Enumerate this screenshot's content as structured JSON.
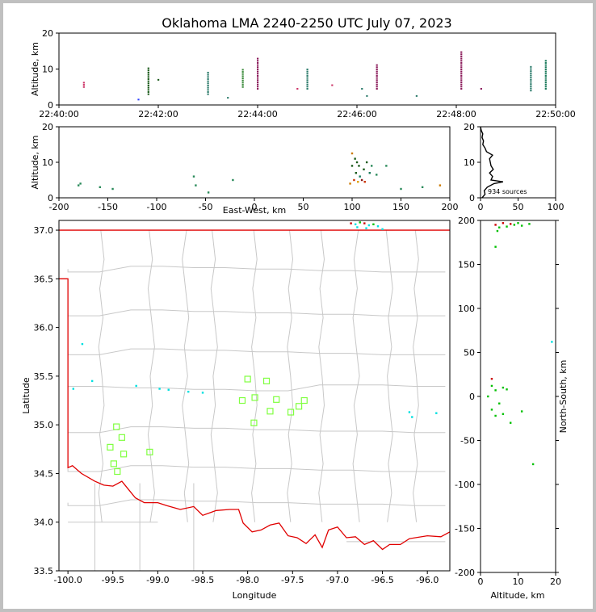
{
  "chart_data": {
    "type": "scatter",
    "title": "Oklahoma LMA 2240-2250 UTC July 07, 2023",
    "colors": {
      "state_border": "#e00000",
      "county_lines": "#c8c8c8",
      "stations": "#80ff40",
      "frame": "#c0c0c0",
      "histogram": "#000000"
    },
    "panels": {
      "time_height": {
        "ylabel": "Altitude, km",
        "xlim": [
          "22:40:00",
          "22:50:00"
        ],
        "ylim": [
          0,
          20
        ],
        "xticks": [
          "22:40:00",
          "22:42:00",
          "22:44:00",
          "22:46:00",
          "22:48:00",
          "22:50:00"
        ],
        "yticks": [
          0,
          10,
          20
        ],
        "source_columns": [
          {
            "t": 0.5,
            "zmin": 5,
            "zmax": 6.5,
            "color": "#cc3366"
          },
          {
            "t": 1.6,
            "zmin": 1.5,
            "zmax": 2,
            "color": "#2a3cff"
          },
          {
            "t": 1.8,
            "zmin": 3,
            "zmax": 10.5,
            "color": "#1a5a1a"
          },
          {
            "t": 2.0,
            "zmin": 7,
            "zmax": 7.5,
            "color": "#1a5a1a"
          },
          {
            "t": 3.0,
            "zmin": 3,
            "zmax": 9,
            "color": "#2a7a6a"
          },
          {
            "t": 3.4,
            "zmin": 2,
            "zmax": 2.5,
            "color": "#2a7a6a"
          },
          {
            "t": 3.7,
            "zmin": 5,
            "zmax": 10,
            "color": "#3a8a3a"
          },
          {
            "t": 4.0,
            "zmin": 4.5,
            "zmax": 13,
            "color": "#8a1a5a"
          },
          {
            "t": 4.8,
            "zmin": 4.5,
            "zmax": 5,
            "color": "#cc3366"
          },
          {
            "t": 5.0,
            "zmin": 4.5,
            "zmax": 10,
            "color": "#2a7a6a"
          },
          {
            "t": 5.5,
            "zmin": 5.5,
            "zmax": 6,
            "color": "#cc3366"
          },
          {
            "t": 6.1,
            "zmin": 4.5,
            "zmax": 5,
            "color": "#2a7a6a"
          },
          {
            "t": 6.2,
            "zmin": 2.5,
            "zmax": 3,
            "color": "#2a7a6a"
          },
          {
            "t": 6.4,
            "zmin": 4.5,
            "zmax": 11.5,
            "color": "#8a1a5a"
          },
          {
            "t": 7.2,
            "zmin": 2.5,
            "zmax": 3,
            "color": "#2a7a6a"
          },
          {
            "t": 8.1,
            "zmin": 4.5,
            "zmax": 15,
            "color": "#8a1a5a"
          },
          {
            "t": 8.5,
            "zmin": 4.5,
            "zmax": 5,
            "color": "#8a1a5a"
          },
          {
            "t": 9.5,
            "zmin": 4,
            "zmax": 11,
            "color": "#2a7a6a"
          },
          {
            "t": 9.8,
            "zmin": 4.5,
            "zmax": 12.5,
            "color": "#1a7a5a"
          }
        ]
      },
      "ew_height": {
        "ylabel": "Altitude, km",
        "xlabel": "East-West, km",
        "xlim": [
          -200,
          200
        ],
        "ylim": [
          0,
          20
        ],
        "xticks": [
          -200,
          -150,
          -100,
          -50,
          0,
          50,
          100,
          150,
          200
        ],
        "yticks": [
          0,
          10,
          20
        ],
        "points": [
          {
            "x": -180,
            "z": 3.5,
            "color": "#2a8a5a"
          },
          {
            "x": -178,
            "z": 4,
            "color": "#2a8a5a"
          },
          {
            "x": -158,
            "z": 3,
            "color": "#2a8a5a"
          },
          {
            "x": -145,
            "z": 2.5,
            "color": "#2a8a5a"
          },
          {
            "x": -62,
            "z": 6,
            "color": "#2a8a5a"
          },
          {
            "x": -60,
            "z": 3.5,
            "color": "#2a8a5a"
          },
          {
            "x": -47,
            "z": 1.5,
            "color": "#2a8a5a"
          },
          {
            "x": -22,
            "z": 5,
            "color": "#2a8a5a"
          },
          {
            "x": 100,
            "z": 12.5,
            "color": "#cc7a00"
          },
          {
            "x": 103,
            "z": 11,
            "color": "#1a5a1a"
          },
          {
            "x": 105,
            "z": 10,
            "color": "#1a5a1a"
          },
          {
            "x": 107,
            "z": 9,
            "color": "#1a5a1a"
          },
          {
            "x": 104,
            "z": 7,
            "color": "#1a5a1a"
          },
          {
            "x": 108,
            "z": 6,
            "color": "#1a7a5a"
          },
          {
            "x": 102,
            "z": 5,
            "color": "#cc3300"
          },
          {
            "x": 106,
            "z": 4.5,
            "color": "#e0a000"
          },
          {
            "x": 110,
            "z": 5,
            "color": "#8a1a1a"
          },
          {
            "x": 112,
            "z": 8,
            "color": "#1a5a1a"
          },
          {
            "x": 115,
            "z": 10,
            "color": "#1a5a1a"
          },
          {
            "x": 118,
            "z": 7,
            "color": "#1a7a5a"
          },
          {
            "x": 120,
            "z": 9,
            "color": "#2a8a5a"
          },
          {
            "x": 125,
            "z": 6.5,
            "color": "#2a8a5a"
          },
          {
            "x": 98,
            "z": 4,
            "color": "#cc7a00"
          },
          {
            "x": 100,
            "z": 9,
            "color": "#1a5a1a"
          },
          {
            "x": 113,
            "z": 4.5,
            "color": "#cc3300"
          },
          {
            "x": 135,
            "z": 9,
            "color": "#2a8a5a"
          },
          {
            "x": 150,
            "z": 2.5,
            "color": "#2a8a5a"
          },
          {
            "x": 172,
            "z": 3,
            "color": "#2a8a5a"
          },
          {
            "x": 190,
            "z": 3.5,
            "color": "#cc7a00"
          }
        ]
      },
      "histogram": {
        "xlim": [
          0,
          100
        ],
        "ylim": [
          0,
          20
        ],
        "xticks": [
          0,
          50,
          100
        ],
        "yticks": [
          0,
          10,
          20
        ],
        "annotation": "934 sources",
        "profile": [
          {
            "z": 0,
            "n": 2
          },
          {
            "z": 1,
            "n": 6
          },
          {
            "z": 2,
            "n": 5
          },
          {
            "z": 3,
            "n": 9
          },
          {
            "z": 4,
            "n": 18
          },
          {
            "z": 4.5,
            "n": 30
          },
          {
            "z": 5,
            "n": 14
          },
          {
            "z": 6,
            "n": 16
          },
          {
            "z": 7,
            "n": 12
          },
          {
            "z": 8,
            "n": 17
          },
          {
            "z": 9,
            "n": 14
          },
          {
            "z": 10,
            "n": 13
          },
          {
            "z": 11,
            "n": 12
          },
          {
            "z": 12,
            "n": 16
          },
          {
            "z": 13,
            "n": 8
          },
          {
            "z": 14,
            "n": 6
          },
          {
            "z": 15,
            "n": 3
          },
          {
            "z": 16,
            "n": 4
          },
          {
            "z": 17,
            "n": 2
          },
          {
            "z": 18,
            "n": 3
          },
          {
            "z": 19,
            "n": 1
          },
          {
            "z": 20,
            "n": 0
          }
        ]
      },
      "map": {
        "xlabel": "Longitude",
        "ylabel": "Latitude",
        "xlim": [
          -100.1,
          -95.75
        ],
        "ylim": [
          33.5,
          37.1
        ],
        "xticks": [
          -100.0,
          -99.5,
          -99.0,
          -98.5,
          -98.0,
          -97.5,
          -97.0,
          -96.5,
          -96.0
        ],
        "yticks": [
          33.5,
          34.0,
          34.5,
          35.0,
          35.5,
          36.0,
          36.5,
          37.0
        ],
        "stations": [
          {
            "lon": -98.0,
            "lat": 35.47
          },
          {
            "lon": -97.79,
            "lat": 35.45
          },
          {
            "lon": -98.06,
            "lat": 35.25
          },
          {
            "lon": -97.92,
            "lat": 35.28
          },
          {
            "lon": -97.68,
            "lat": 35.26
          },
          {
            "lon": -97.37,
            "lat": 35.25
          },
          {
            "lon": -97.43,
            "lat": 35.19
          },
          {
            "lon": -97.75,
            "lat": 35.14
          },
          {
            "lon": -97.52,
            "lat": 35.13
          },
          {
            "lon": -97.93,
            "lat": 35.02
          },
          {
            "lon": -99.46,
            "lat": 34.98
          },
          {
            "lon": -99.4,
            "lat": 34.87
          },
          {
            "lon": -99.53,
            "lat": 34.77
          },
          {
            "lon": -99.38,
            "lat": 34.7
          },
          {
            "lon": -99.09,
            "lat": 34.72
          },
          {
            "lon": -99.49,
            "lat": 34.6
          },
          {
            "lon": -99.45,
            "lat": 34.52
          }
        ],
        "sources": [
          {
            "lon": -99.84,
            "lat": 35.83,
            "color": "#00e0e0"
          },
          {
            "lon": -99.73,
            "lat": 35.45,
            "color": "#00e0e0"
          },
          {
            "lon": -99.94,
            "lat": 35.37,
            "color": "#00e0e0"
          },
          {
            "lon": -99.24,
            "lat": 35.4,
            "color": "#00e0e0"
          },
          {
            "lon": -98.98,
            "lat": 35.37,
            "color": "#00e0e0"
          },
          {
            "lon": -98.88,
            "lat": 35.36,
            "color": "#00e0e0"
          },
          {
            "lon": -98.66,
            "lat": 35.34,
            "color": "#00e0e0"
          },
          {
            "lon": -98.5,
            "lat": 35.33,
            "color": "#00e0e0"
          },
          {
            "lon": -96.2,
            "lat": 35.13,
            "color": "#00e0e0"
          },
          {
            "lon": -96.17,
            "lat": 35.08,
            "color": "#00e0e0"
          },
          {
            "lon": -95.9,
            "lat": 35.12,
            "color": "#00e0e0"
          },
          {
            "lon": -96.85,
            "lat": 37.07,
            "color": "#cc0000"
          },
          {
            "lon": -96.8,
            "lat": 37.06,
            "color": "#00e0e0"
          },
          {
            "lon": -96.75,
            "lat": 37.08,
            "color": "#00c000"
          },
          {
            "lon": -96.7,
            "lat": 37.07,
            "color": "#cc0000"
          },
          {
            "lon": -96.65,
            "lat": 37.05,
            "color": "#00e0e0"
          },
          {
            "lon": -96.6,
            "lat": 37.06,
            "color": "#00c000"
          },
          {
            "lon": -96.55,
            "lat": 37.04,
            "color": "#00e0e0"
          },
          {
            "lon": -96.78,
            "lat": 37.03,
            "color": "#00e0e0"
          },
          {
            "lon": -96.68,
            "lat": 37.02,
            "color": "#00e0e0"
          },
          {
            "lon": -96.5,
            "lat": 37.01,
            "color": "#00e0e0"
          }
        ]
      },
      "ns_height": {
        "xlabel": "Altitude, km",
        "ylabel": "North-South, km",
        "xlim": [
          0,
          20
        ],
        "ylim": [
          -200,
          200
        ],
        "xticks": [
          0,
          10,
          20
        ],
        "yticks": [
          -200,
          -150,
          -100,
          -50,
          0,
          50,
          100,
          150,
          200
        ],
        "points": [
          {
            "z": 4,
            "y": 195,
            "color": "#cc0000"
          },
          {
            "z": 5,
            "y": 192,
            "color": "#00c000"
          },
          {
            "z": 6,
            "y": 197,
            "color": "#cc0000"
          },
          {
            "z": 7,
            "y": 193,
            "color": "#00c000"
          },
          {
            "z": 8,
            "y": 196,
            "color": "#cc0000"
          },
          {
            "z": 9,
            "y": 195,
            "color": "#00c000"
          },
          {
            "z": 10,
            "y": 197,
            "color": "#00c000"
          },
          {
            "z": 11,
            "y": 194,
            "color": "#00c000"
          },
          {
            "z": 13,
            "y": 196,
            "color": "#00c000"
          },
          {
            "z": 4.5,
            "y": 188,
            "color": "#00c000"
          },
          {
            "z": 4,
            "y": 170,
            "color": "#00c000"
          },
          {
            "z": 3,
            "y": 20,
            "color": "#cc0000"
          },
          {
            "z": 3,
            "y": 12,
            "color": "#00c000"
          },
          {
            "z": 4,
            "y": 7,
            "color": "#00c000"
          },
          {
            "z": 6,
            "y": 10,
            "color": "#00c000"
          },
          {
            "z": 7,
            "y": 8,
            "color": "#00c000"
          },
          {
            "z": 2,
            "y": 0,
            "color": "#00c000"
          },
          {
            "z": 5,
            "y": -8,
            "color": "#00c000"
          },
          {
            "z": 3,
            "y": -15,
            "color": "#00c000"
          },
          {
            "z": 4,
            "y": -22,
            "color": "#00c000"
          },
          {
            "z": 6,
            "y": -20,
            "color": "#00c000"
          },
          {
            "z": 11,
            "y": -17,
            "color": "#00c000"
          },
          {
            "z": 8,
            "y": -30,
            "color": "#00c000"
          },
          {
            "z": 14,
            "y": -77,
            "color": "#00c000"
          },
          {
            "z": 19,
            "y": 62,
            "color": "#00e0e0"
          }
        ]
      }
    }
  }
}
